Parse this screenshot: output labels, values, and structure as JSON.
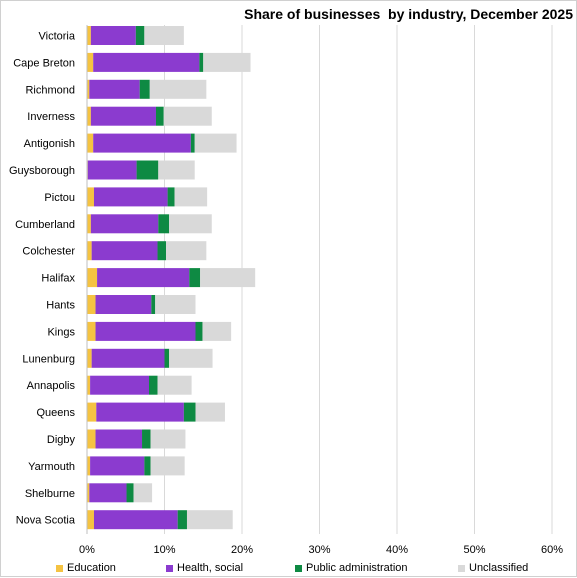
{
  "chart_data": {
    "type": "bar",
    "orientation": "horizontal",
    "stacked": true,
    "title": "Share of businesses  by industry, December 2025",
    "xlabel": "",
    "ylabel": "",
    "xlim": [
      0,
      60
    ],
    "x_ticks": [
      0,
      10,
      20,
      30,
      40,
      50,
      60
    ],
    "x_tick_labels": [
      "0%",
      "10%",
      "20%",
      "30%",
      "40%",
      "50%",
      "60%"
    ],
    "grid": "vertical",
    "legend_position": "bottom",
    "categories": [
      "Victoria",
      "Cape Breton",
      "Richmond",
      "Inverness",
      "Antigonish",
      "Guysborough",
      "Pictou",
      "Cumberland",
      "Colchester",
      "Halifax",
      "Hants",
      "Kings",
      "Lunenburg",
      "Annapolis",
      "Queens",
      "Digby",
      "Yarmouth",
      "Shelburne",
      "Nova Scotia"
    ],
    "series": [
      {
        "name": "Education",
        "color": "#F5C342",
        "values": [
          0.5,
          0.8,
          0.3,
          0.5,
          0.8,
          0.1,
          0.9,
          0.5,
          0.6,
          1.3,
          1.1,
          1.1,
          0.6,
          0.4,
          1.2,
          1.1,
          0.4,
          0.3,
          0.9
        ]
      },
      {
        "name": "Health, social",
        "color": "#8B3BCF",
        "values": [
          5.8,
          13.7,
          6.5,
          8.4,
          12.6,
          6.3,
          9.5,
          8.7,
          8.5,
          11.9,
          7.2,
          12.9,
          9.4,
          7.6,
          11.3,
          6.0,
          7.0,
          4.8,
          10.8
        ]
      },
      {
        "name": "Public administration",
        "color": "#0E8A43",
        "values": [
          1.1,
          0.5,
          1.3,
          1.0,
          0.5,
          2.8,
          0.9,
          1.4,
          1.1,
          1.4,
          0.5,
          0.9,
          0.6,
          1.1,
          1.5,
          1.1,
          0.8,
          0.9,
          1.2
        ]
      },
      {
        "name": "Unclassified",
        "color": "#D9D9D9",
        "values": [
          5.1,
          6.1,
          7.3,
          6.2,
          5.4,
          4.7,
          4.2,
          5.5,
          5.2,
          7.1,
          5.2,
          3.7,
          5.6,
          4.4,
          3.8,
          4.5,
          4.4,
          2.4,
          5.9
        ]
      }
    ]
  }
}
